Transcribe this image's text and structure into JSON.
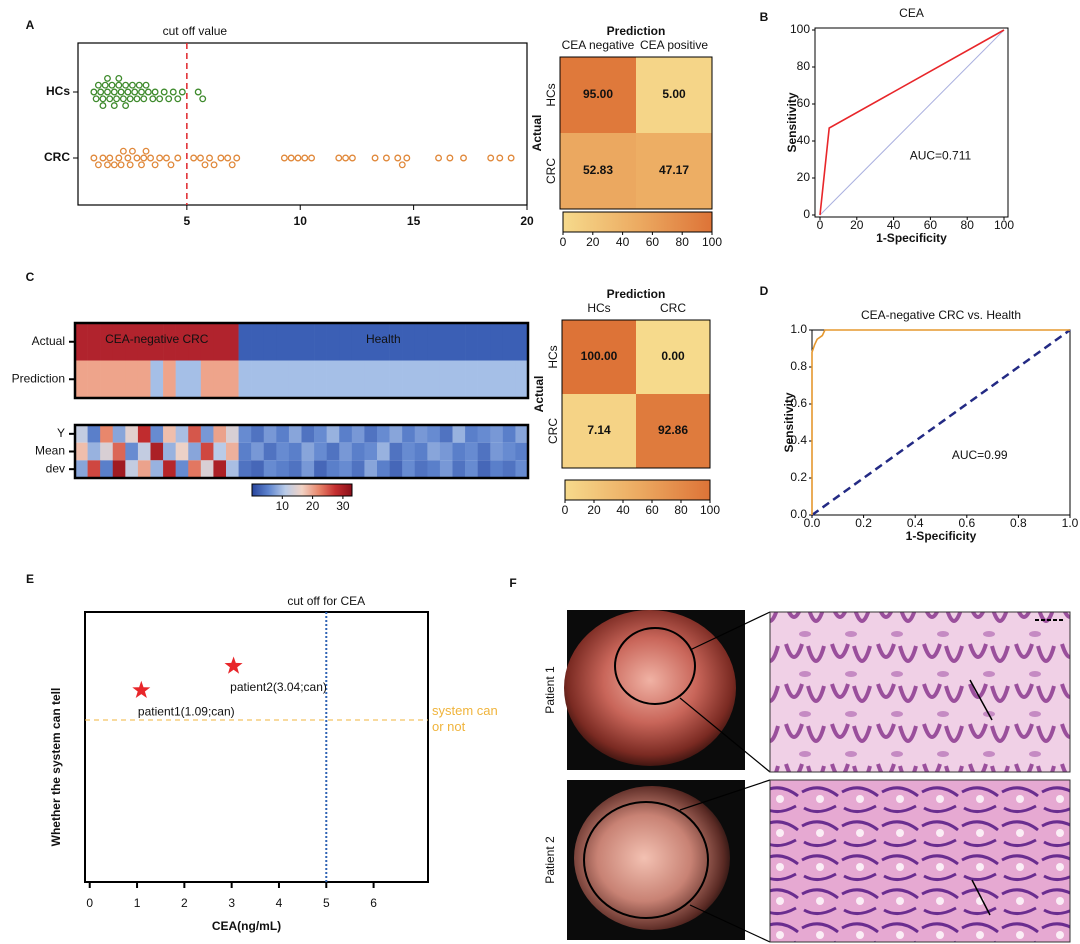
{
  "panels": [
    "A",
    "B",
    "C",
    "D",
    "E",
    "F"
  ],
  "chart_data": [
    {
      "type": "strip",
      "annotation": "cut off value",
      "cutoff": 5,
      "cutoff_color": "#e0262b",
      "xlim": [
        0.2,
        20
      ],
      "xticks": [
        5,
        10,
        15,
        20
      ],
      "series": [
        {
          "name": "HCs",
          "color": "#3e8a2c",
          "values": [
            0.9,
            1.0,
            1.1,
            1.2,
            1.3,
            1.3,
            1.4,
            1.5,
            1.5,
            1.6,
            1.7,
            1.8,
            1.8,
            1.9,
            2.0,
            2.0,
            2.1,
            2.2,
            2.3,
            2.3,
            2.4,
            2.5,
            2.6,
            2.7,
            2.8,
            2.9,
            3.0,
            3.1,
            3.2,
            3.3,
            3.5,
            3.6,
            3.8,
            4.0,
            4.2,
            4.4,
            4.6,
            4.8,
            5.5,
            5.7
          ]
        },
        {
          "name": "CRC",
          "color": "#e0883a",
          "values": [
            0.9,
            1.1,
            1.3,
            1.5,
            1.6,
            1.8,
            2.0,
            2.1,
            2.2,
            2.4,
            2.5,
            2.6,
            2.8,
            3.0,
            3.1,
            3.2,
            3.4,
            3.6,
            3.8,
            4.1,
            4.3,
            4.6,
            5.3,
            5.6,
            5.8,
            6.0,
            6.2,
            6.5,
            6.8,
            7.0,
            7.2,
            9.3,
            9.6,
            9.9,
            10.2,
            10.5,
            11.7,
            12.0,
            12.3,
            13.3,
            13.8,
            14.3,
            14.5,
            14.7,
            16.1,
            16.6,
            17.2,
            18.4,
            18.8,
            19.3
          ]
        }
      ]
    },
    {
      "type": "confusion",
      "title": "Prediction",
      "ylabel": "Actual",
      "columns": [
        "CEA negative",
        "CEA positive"
      ],
      "rows": [
        "HCs",
        "CRC"
      ],
      "values": [
        [
          95,
          5
        ],
        [
          52.83,
          47.17
        ]
      ],
      "value_labels": [
        [
          "95.00",
          "5.00"
        ],
        [
          "52.83",
          "47.17"
        ]
      ],
      "clim": [
        0,
        100
      ],
      "cticks": [
        0,
        20,
        40,
        60,
        80,
        100
      ],
      "colors": [
        "#f6da8c",
        "#ecab62",
        "#dd7337"
      ]
    },
    {
      "type": "line",
      "title": "CEA",
      "xlabel": "1-Specificity",
      "ylabel": "Sensitivity",
      "annotation": "AUC=0.711",
      "x": [
        0,
        5,
        100
      ],
      "series": [
        {
          "color": "#e8262a",
          "values": [
            0,
            47,
            100
          ]
        }
      ],
      "diagonal_color": "#aab0df",
      "diagonal_dashed": false,
      "xlim": [
        0,
        100
      ],
      "ylim": [
        0,
        100
      ],
      "xticks": [
        0,
        20,
        40,
        60,
        80,
        100
      ],
      "yticks": [
        0,
        20,
        40,
        60,
        80,
        100
      ]
    },
    {
      "type": "heatmap",
      "rows": [
        "Actual",
        "Prediction"
      ],
      "classes": [
        "CEA-negative CRC",
        "Health"
      ],
      "row_colors": [
        [
          "#b1232d",
          "#3b5fb5"
        ],
        [
          "#eea48b",
          "#a5bfe7"
        ]
      ],
      "values": [
        [
          0,
          0,
          0,
          0,
          0,
          0,
          0,
          0,
          0,
          0,
          0,
          0,
          0,
          1,
          1,
          1,
          1,
          1,
          1,
          1,
          1,
          1,
          1,
          1,
          1,
          1,
          1,
          1,
          1,
          1,
          1,
          1,
          1,
          1,
          1,
          1
        ],
        [
          0,
          0,
          0,
          0,
          0,
          0,
          1,
          0,
          1,
          1,
          0,
          0,
          0,
          1,
          1,
          1,
          1,
          1,
          1,
          1,
          1,
          1,
          1,
          1,
          1,
          1,
          1,
          1,
          1,
          1,
          1,
          1,
          1,
          1,
          1,
          1
        ]
      ]
    },
    {
      "type": "heatmap",
      "rows": [
        "Y",
        "Mean",
        "dev"
      ],
      "clim": [
        0,
        33
      ],
      "cticks": [
        10,
        20,
        30
      ],
      "colors": [
        "#27449c",
        "#5f85cf",
        "#b9cbe8",
        "#f1d2c4",
        "#e8876c",
        "#c52f30",
        "#8b0f1a"
      ],
      "values": [
        [
          12,
          5,
          22,
          8,
          15,
          28,
          6,
          18,
          10,
          25,
          7,
          20,
          14,
          6,
          4,
          7,
          5,
          8,
          4,
          6,
          9,
          5,
          7,
          4,
          6,
          8,
          5,
          7,
          6,
          4,
          9,
          5,
          6,
          7,
          5,
          8
        ],
        [
          18,
          9,
          14,
          24,
          6,
          12,
          30,
          9,
          16,
          8,
          26,
          11,
          19,
          5,
          7,
          4,
          6,
          5,
          8,
          6,
          4,
          7,
          5,
          6,
          9,
          4,
          6,
          5,
          8,
          7,
          5,
          6,
          4,
          7,
          6,
          5
        ],
        [
          8,
          26,
          5,
          31,
          12,
          20,
          9,
          29,
          6,
          23,
          14,
          30,
          10,
          4,
          3,
          6,
          5,
          4,
          7,
          3,
          5,
          6,
          4,
          8,
          5,
          3,
          6,
          4,
          5,
          7,
          4,
          6,
          3,
          5,
          4,
          6
        ]
      ]
    },
    {
      "type": "confusion",
      "title": "Prediction",
      "ylabel": "Actual",
      "columns": [
        "HCs",
        "CRC"
      ],
      "rows": [
        "HCs",
        "CRC"
      ],
      "values": [
        [
          100,
          0
        ],
        [
          7.14,
          92.86
        ]
      ],
      "value_labels": [
        [
          "100.00",
          "0.00"
        ],
        [
          "7.14",
          "92.86"
        ]
      ],
      "clim": [
        0,
        100
      ],
      "cticks": [
        0,
        20,
        40,
        60,
        80,
        100
      ],
      "colors": [
        "#f6da8c",
        "#ecab62",
        "#dd7337"
      ]
    },
    {
      "type": "line",
      "title": "CEA-negative CRC vs. Health",
      "xlabel": "1-Specificity",
      "ylabel": "Sensitivity",
      "annotation": "AUC=0.99",
      "x": [
        0,
        0,
        0.01,
        0.02,
        0.04,
        0.05,
        1
      ],
      "series": [
        {
          "color": "#e5982f",
          "values": [
            0,
            0.88,
            0.92,
            0.95,
            0.97,
            1,
            1
          ]
        }
      ],
      "diagonal_color": "#232a84",
      "diagonal_dashed": true,
      "xlim": [
        0,
        1
      ],
      "ylim": [
        0,
        1
      ],
      "xticks": [
        {
          "value": 0,
          "label": "0.0"
        },
        0.2,
        0.4,
        0.6,
        0.8,
        {
          "value": 1,
          "label": "1.0"
        }
      ],
      "yticks": [
        {
          "value": 0,
          "label": "0.0"
        },
        0.2,
        0.4,
        0.6,
        0.8,
        {
          "value": 1,
          "label": "1.0"
        }
      ]
    },
    {
      "type": "scatter",
      "xlabel": "CEA(ng/mL)",
      "ylabel": "Whether the system can tell",
      "color": "#e8262a",
      "x": [
        1.09,
        3.04
      ],
      "values": [
        0.71,
        0.8
      ],
      "point_labels": [
        "patient1(1.09;can)",
        "patient2(3.04;can)"
      ],
      "cutoff": 5,
      "cutoff_label": "cut off for CEA",
      "cutoff_color": "#2f63b4",
      "threshold": 0.6,
      "threshold_label": "system can or not",
      "threshold_color": "#f0b43c",
      "xlim": [
        -0.1,
        7.15
      ],
      "ylim": [
        0,
        1
      ],
      "xticks": [
        0,
        1,
        2,
        3,
        4,
        5,
        6
      ]
    }
  ],
  "images": {
    "labels": [
      "Patient 1",
      "Patient 2"
    ]
  }
}
